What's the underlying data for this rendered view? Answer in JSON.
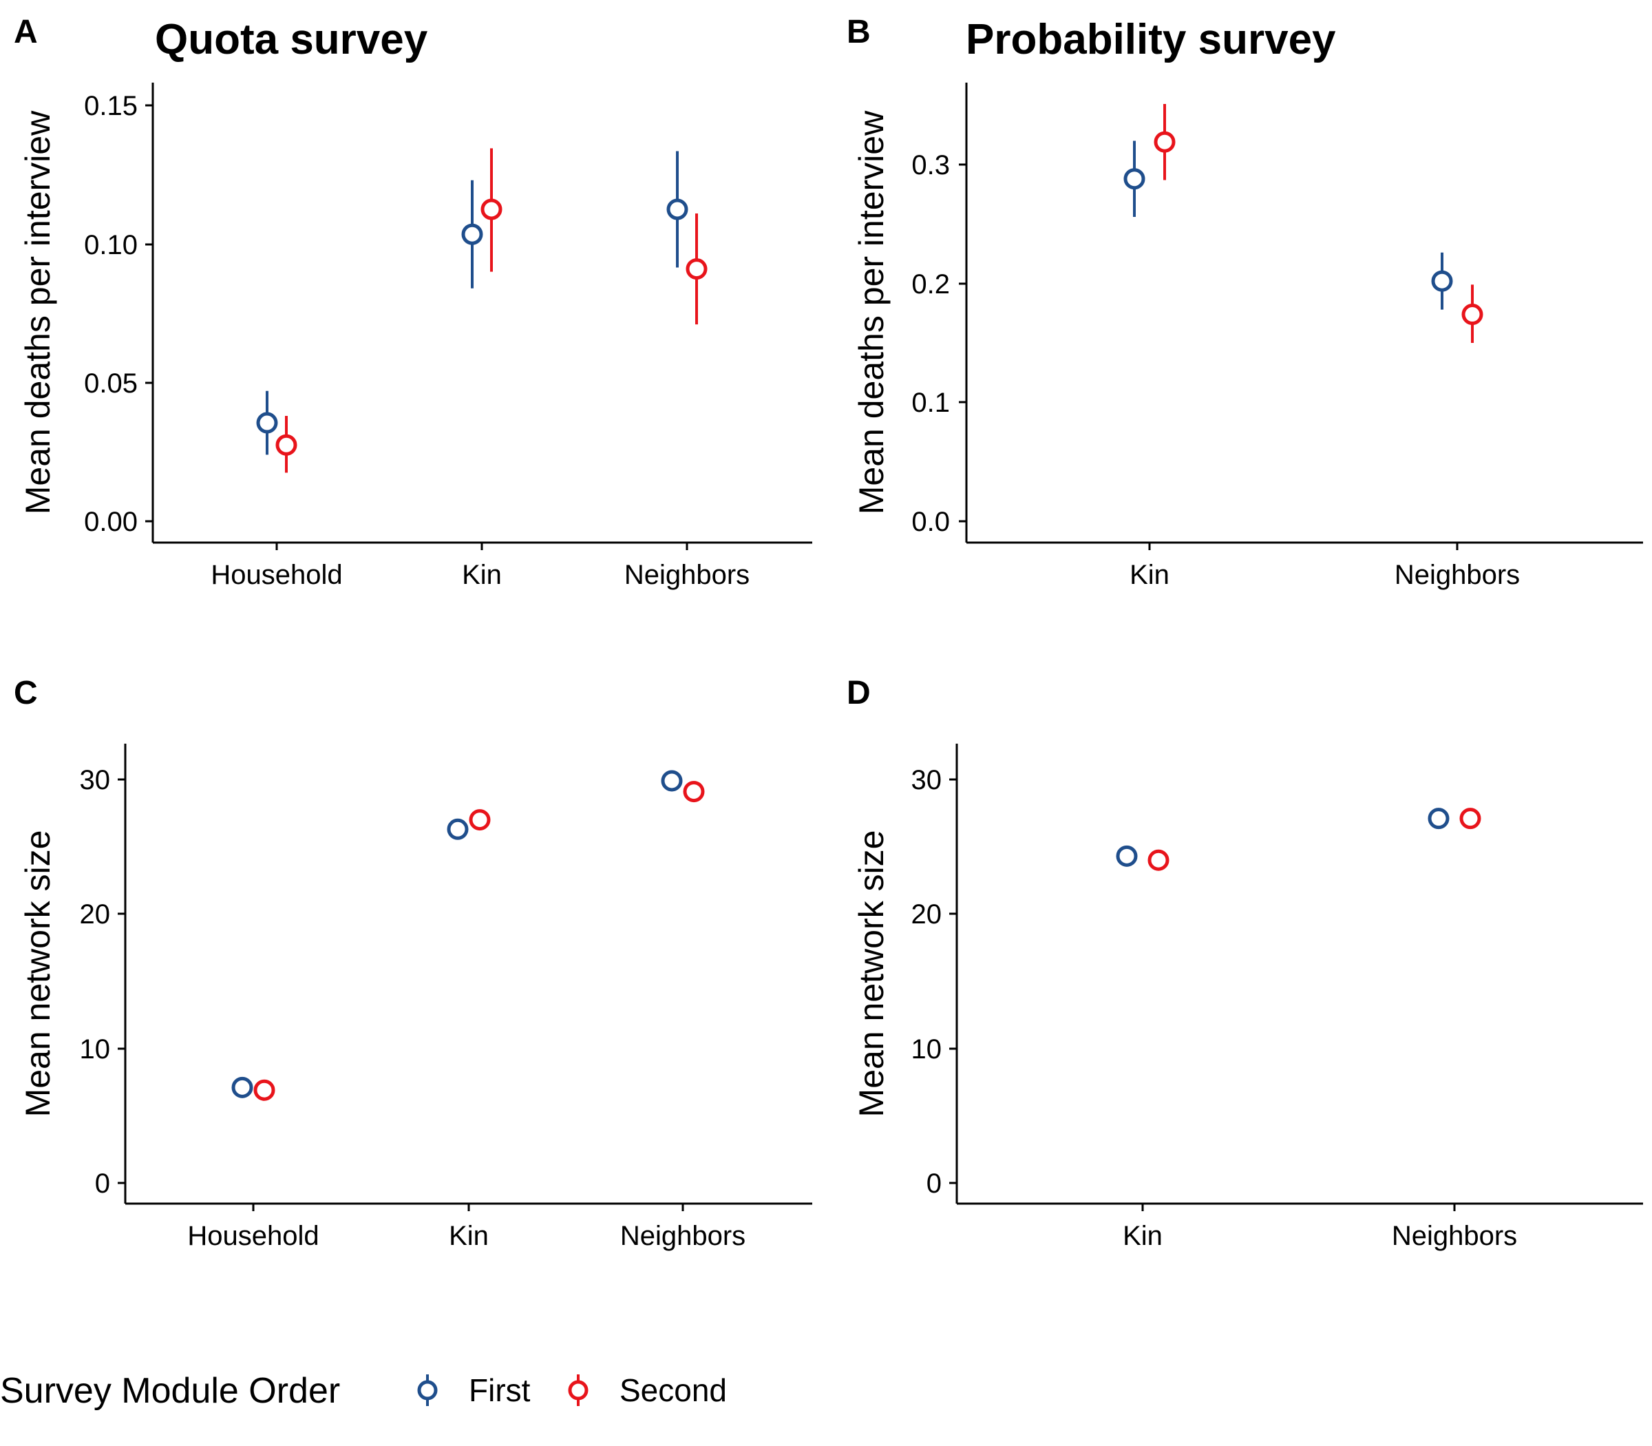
{
  "colors": {
    "first": "#1f4e8c",
    "second": "#e8141b",
    "axis": "#000000"
  },
  "legend": {
    "title": "Survey Module Order",
    "entries": [
      {
        "key": "first",
        "label": "First"
      },
      {
        "key": "second",
        "label": "Second"
      }
    ]
  },
  "chart_data": [
    {
      "tag": "A",
      "title": "Quota survey",
      "type": "scatter",
      "ylabel": "Mean deaths per interview",
      "categories": [
        "Household",
        "Kin",
        "Neighbors"
      ],
      "ylim": [
        -0.007,
        0.158
      ],
      "yticks": [
        "0.00",
        "0.05",
        "0.10",
        "0.15"
      ],
      "error_bars": true,
      "series": [
        {
          "key": "first",
          "values": [
            0.0355,
            0.1035,
            0.1125
          ],
          "lower": [
            0.024,
            0.084,
            0.0915
          ],
          "upper": [
            0.047,
            0.123,
            0.1335
          ]
        },
        {
          "key": "second",
          "values": [
            0.0275,
            0.1125,
            0.091
          ],
          "lower": [
            0.0175,
            0.09,
            0.071
          ],
          "upper": [
            0.038,
            0.1345,
            0.111
          ]
        }
      ]
    },
    {
      "tag": "B",
      "title": "Probability survey",
      "type": "scatter",
      "ylabel": "Mean deaths per interview",
      "categories": [
        "Kin",
        "Neighbors"
      ],
      "ylim": [
        -0.018,
        0.368
      ],
      "yticks": [
        "0.0",
        "0.1",
        "0.2",
        "0.3"
      ],
      "error_bars": true,
      "series": [
        {
          "key": "first",
          "values": [
            0.288,
            0.202
          ],
          "lower": [
            0.256,
            0.178
          ],
          "upper": [
            0.32,
            0.226
          ]
        },
        {
          "key": "second",
          "values": [
            0.319,
            0.174
          ],
          "lower": [
            0.287,
            0.15
          ],
          "upper": [
            0.351,
            0.199
          ]
        }
      ]
    },
    {
      "tag": "C",
      "title": "",
      "type": "scatter",
      "ylabel": "Mean network size",
      "categories": [
        "Household",
        "Kin",
        "Neighbors"
      ],
      "ylim": [
        -1.5,
        32.5
      ],
      "yticks": [
        "0",
        "10",
        "20",
        "30"
      ],
      "error_bars": false,
      "series": [
        {
          "key": "first",
          "values": [
            7.1,
            26.3,
            29.9
          ]
        },
        {
          "key": "second",
          "values": [
            6.9,
            27.0,
            29.1
          ]
        }
      ]
    },
    {
      "tag": "D",
      "title": "",
      "type": "scatter",
      "ylabel": "Mean network size",
      "categories": [
        "Kin",
        "Neighbors"
      ],
      "ylim": [
        -1.5,
        32.5
      ],
      "yticks": [
        "0",
        "10",
        "20",
        "30"
      ],
      "error_bars": false,
      "series": [
        {
          "key": "first",
          "values": [
            24.3,
            27.1
          ]
        },
        {
          "key": "second",
          "values": [
            24.0,
            27.1
          ]
        }
      ]
    }
  ]
}
